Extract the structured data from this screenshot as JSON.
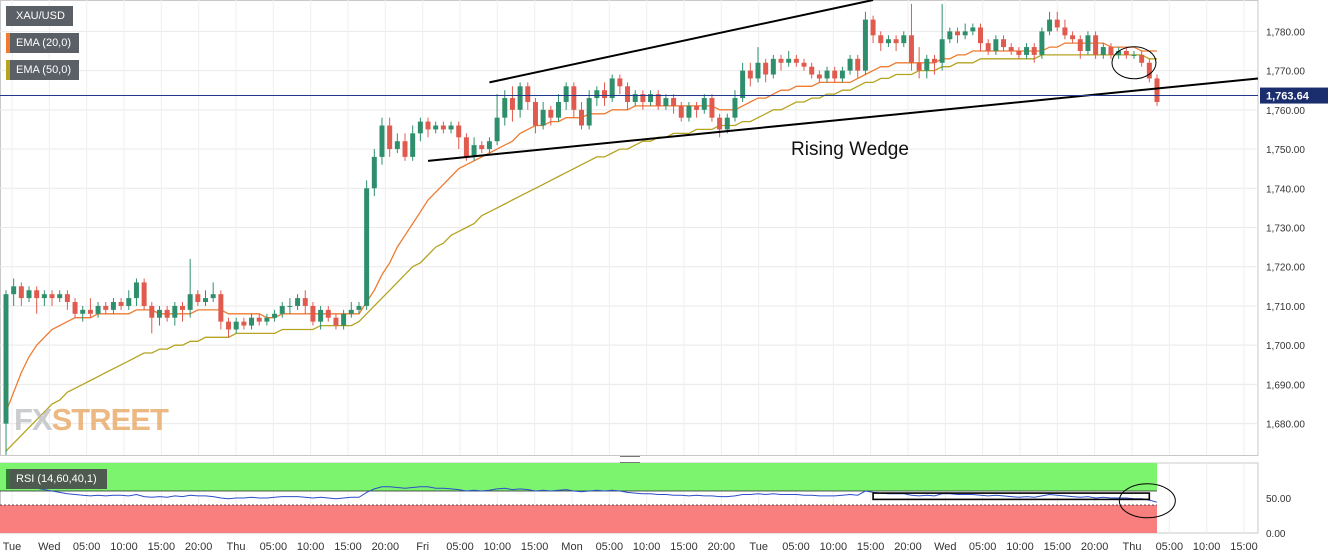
{
  "legend": {
    "symbol": "XAU/USD",
    "ema20": "EMA (20,0)",
    "ema50": "EMA (50,0)",
    "rsi": "RSI (14,60,40,1)"
  },
  "watermark": {
    "part1": "FX",
    "part2": "STREET"
  },
  "colors": {
    "up": "#2f8f6c",
    "down": "#e05a4e",
    "ema20": "#ee7b30",
    "ema50": "#b5a321",
    "price_line": "#1f3a8a",
    "rsi_line": "#2d4ec9",
    "rsi_upper": "#7df46e",
    "rsi_lower": "#f97f7f"
  },
  "chart_data": {
    "type": "candlestick",
    "symbol": "XAU/USD",
    "ylim": [
      1672,
      1788
    ],
    "y_ticks": [
      1680,
      1690,
      1700,
      1710,
      1720,
      1730,
      1740,
      1750,
      1760,
      1770,
      1780
    ],
    "y_tick_labels": [
      "1,680.00",
      "1,690.00",
      "1,700.00",
      "1,710.00",
      "1,720.00",
      "1,730.00",
      "1,740.00",
      "1,750.00",
      "1,760.00",
      "1,770.00",
      "1,780.00"
    ],
    "x_labels": [
      "Tue",
      "Wed",
      "05:00",
      "10:00",
      "15:00",
      "20:00",
      "Thu",
      "05:00",
      "10:00",
      "15:00",
      "20:00",
      "Fri",
      "05:00",
      "10:00",
      "15:00",
      "Mon",
      "05:00",
      "10:00",
      "15:00",
      "20:00",
      "Tue",
      "05:00",
      "10:00",
      "15:00",
      "20:00",
      "Wed",
      "05:00",
      "10:00",
      "15:00",
      "20:00",
      "Thu",
      "05:00",
      "10:00",
      "15:00"
    ],
    "current_price": 1763.64,
    "current_price_label": "1,763.64",
    "annotation": "Rising Wedge",
    "wedge_upper": [
      [
        1766,
        1777
      ],
      [
        1785,
        1790
      ]
    ],
    "wedge_lower": [
      [
        1747,
        1748
      ],
      [
        1765,
        1772
      ]
    ],
    "candles": [
      [
        1680,
        1713,
        1672,
        1714
      ],
      [
        1713,
        1715,
        1710,
        1717
      ],
      [
        1715,
        1712,
        1710,
        1716
      ],
      [
        1712,
        1714,
        1711,
        1715
      ],
      [
        1714,
        1712,
        1708,
        1715
      ],
      [
        1712,
        1713,
        1710,
        1714
      ],
      [
        1713,
        1712,
        1710,
        1714
      ],
      [
        1712,
        1713,
        1711,
        1714
      ],
      [
        1713,
        1711,
        1709,
        1714
      ],
      [
        1711,
        1708,
        1707,
        1712
      ],
      [
        1708,
        1709,
        1706,
        1710
      ],
      [
        1709,
        1708,
        1707,
        1712
      ],
      [
        1708,
        1710,
        1707,
        1711
      ],
      [
        1710,
        1709,
        1708,
        1711
      ],
      [
        1709,
        1711,
        1708,
        1712
      ],
      [
        1711,
        1710,
        1709,
        1712
      ],
      [
        1710,
        1712,
        1709,
        1714
      ],
      [
        1712,
        1716,
        1710,
        1717
      ],
      [
        1716,
        1710,
        1709,
        1717
      ],
      [
        1710,
        1707,
        1703,
        1711
      ],
      [
        1707,
        1709,
        1705,
        1710
      ],
      [
        1709,
        1707,
        1706,
        1710
      ],
      [
        1707,
        1710,
        1705,
        1711
      ],
      [
        1710,
        1709,
        1706,
        1711
      ],
      [
        1709,
        1713,
        1707,
        1722
      ],
      [
        1713,
        1711,
        1710,
        1714
      ],
      [
        1711,
        1712,
        1710,
        1714
      ],
      [
        1712,
        1713,
        1711,
        1716
      ],
      [
        1713,
        1706,
        1704,
        1714
      ],
      [
        1706,
        1704,
        1702,
        1707
      ],
      [
        1704,
        1706,
        1703,
        1707
      ],
      [
        1706,
        1705,
        1704,
        1707
      ],
      [
        1705,
        1707,
        1704,
        1708
      ],
      [
        1707,
        1706,
        1705,
        1708
      ],
      [
        1706,
        1707,
        1705,
        1708
      ],
      [
        1707,
        1708,
        1706,
        1709
      ],
      [
        1708,
        1710,
        1707,
        1711
      ],
      [
        1710,
        1710,
        1708,
        1712
      ],
      [
        1710,
        1712,
        1709,
        1713
      ],
      [
        1712,
        1710,
        1708,
        1714
      ],
      [
        1710,
        1706,
        1705,
        1711
      ],
      [
        1706,
        1709,
        1704,
        1710
      ],
      [
        1709,
        1707,
        1706,
        1710
      ],
      [
        1707,
        1705,
        1704,
        1708
      ],
      [
        1705,
        1708,
        1704,
        1709
      ],
      [
        1708,
        1709,
        1707,
        1711
      ],
      [
        1709,
        1710,
        1708,
        1711
      ],
      [
        1710,
        1740,
        1709,
        1742
      ],
      [
        1740,
        1748,
        1738,
        1750
      ],
      [
        1748,
        1756,
        1746,
        1758
      ],
      [
        1756,
        1750,
        1748,
        1758
      ],
      [
        1750,
        1752,
        1749,
        1754
      ],
      [
        1752,
        1748,
        1747,
        1754
      ],
      [
        1748,
        1754,
        1747,
        1756
      ],
      [
        1754,
        1757,
        1752,
        1758
      ],
      [
        1757,
        1755,
        1753,
        1758
      ],
      [
        1755,
        1756,
        1754,
        1757
      ],
      [
        1756,
        1755,
        1754,
        1757
      ],
      [
        1755,
        1756,
        1754,
        1757
      ],
      [
        1756,
        1753,
        1750,
        1757
      ],
      [
        1753,
        1748,
        1747,
        1754
      ],
      [
        1748,
        1751,
        1747,
        1753
      ],
      [
        1751,
        1750,
        1749,
        1752
      ],
      [
        1750,
        1752,
        1749,
        1753
      ],
      [
        1752,
        1758,
        1751,
        1764
      ],
      [
        1758,
        1763,
        1756,
        1765
      ],
      [
        1763,
        1760,
        1757,
        1766
      ],
      [
        1760,
        1766,
        1758,
        1767
      ],
      [
        1766,
        1762,
        1760,
        1767
      ],
      [
        1762,
        1756,
        1754,
        1763
      ],
      [
        1756,
        1760,
        1755,
        1762
      ],
      [
        1760,
        1758,
        1756,
        1761
      ],
      [
        1758,
        1762,
        1757,
        1764
      ],
      [
        1762,
        1766,
        1760,
        1767
      ],
      [
        1766,
        1760,
        1758,
        1767
      ],
      [
        1760,
        1756,
        1755,
        1762
      ],
      [
        1756,
        1763,
        1755,
        1765
      ],
      [
        1763,
        1765,
        1761,
        1766
      ],
      [
        1765,
        1763,
        1761,
        1767
      ],
      [
        1763,
        1768,
        1762,
        1769
      ],
      [
        1768,
        1766,
        1764,
        1769
      ],
      [
        1766,
        1762,
        1760,
        1767
      ],
      [
        1762,
        1764,
        1761,
        1765
      ],
      [
        1764,
        1762,
        1760,
        1765
      ],
      [
        1762,
        1764,
        1761,
        1765
      ],
      [
        1764,
        1761,
        1760,
        1765
      ],
      [
        1761,
        1763,
        1760,
        1764
      ],
      [
        1763,
        1761,
        1759,
        1764
      ],
      [
        1761,
        1758,
        1757,
        1762
      ],
      [
        1758,
        1761,
        1757,
        1762
      ],
      [
        1761,
        1760,
        1758,
        1762
      ],
      [
        1760,
        1763,
        1759,
        1764
      ],
      [
        1763,
        1758,
        1757,
        1764
      ],
      [
        1758,
        1755,
        1753,
        1759
      ],
      [
        1755,
        1758,
        1754,
        1759
      ],
      [
        1758,
        1763,
        1757,
        1765
      ],
      [
        1763,
        1770,
        1762,
        1772
      ],
      [
        1770,
        1768,
        1766,
        1772
      ],
      [
        1768,
        1772,
        1767,
        1776
      ],
      [
        1772,
        1769,
        1767,
        1773
      ],
      [
        1769,
        1773,
        1768,
        1774
      ],
      [
        1773,
        1772,
        1770,
        1774
      ],
      [
        1772,
        1773,
        1771,
        1775
      ],
      [
        1773,
        1772,
        1771,
        1774
      ],
      [
        1772,
        1771,
        1770,
        1773
      ],
      [
        1771,
        1769,
        1768,
        1772
      ],
      [
        1769,
        1768,
        1767,
        1770
      ],
      [
        1768,
        1770,
        1767,
        1771
      ],
      [
        1770,
        1768,
        1767,
        1771
      ],
      [
        1768,
        1770,
        1767,
        1771
      ],
      [
        1770,
        1773,
        1769,
        1774
      ],
      [
        1773,
        1770,
        1768,
        1774
      ],
      [
        1770,
        1783,
        1769,
        1785
      ],
      [
        1783,
        1779,
        1777,
        1784
      ],
      [
        1779,
        1777,
        1775,
        1780
      ],
      [
        1777,
        1778,
        1776,
        1779
      ],
      [
        1778,
        1777,
        1775,
        1779
      ],
      [
        1777,
        1779,
        1776,
        1780
      ],
      [
        1779,
        1772,
        1770,
        1787
      ],
      [
        1772,
        1770,
        1768,
        1776
      ],
      [
        1770,
        1773,
        1768,
        1774
      ],
      [
        1773,
        1772,
        1769,
        1774
      ],
      [
        1772,
        1778,
        1770,
        1787
      ],
      [
        1778,
        1780,
        1777,
        1781
      ],
      [
        1780,
        1779,
        1777,
        1781
      ],
      [
        1779,
        1780,
        1778,
        1782
      ],
      [
        1780,
        1781,
        1779,
        1782
      ],
      [
        1781,
        1777,
        1775,
        1782
      ],
      [
        1777,
        1775,
        1774,
        1778
      ],
      [
        1775,
        1778,
        1774,
        1779
      ],
      [
        1778,
        1776,
        1775,
        1779
      ],
      [
        1776,
        1775,
        1774,
        1777
      ],
      [
        1775,
        1774,
        1773,
        1776
      ],
      [
        1774,
        1776,
        1773,
        1777
      ],
      [
        1776,
        1774,
        1772,
        1777
      ],
      [
        1774,
        1780,
        1773,
        1781
      ],
      [
        1780,
        1783,
        1779,
        1785
      ],
      [
        1783,
        1781,
        1780,
        1785
      ],
      [
        1781,
        1779,
        1778,
        1783
      ],
      [
        1779,
        1778,
        1777,
        1780
      ],
      [
        1778,
        1775,
        1773,
        1779
      ],
      [
        1775,
        1779,
        1774,
        1780
      ],
      [
        1779,
        1774,
        1773,
        1780
      ],
      [
        1774,
        1776,
        1773,
        1777
      ],
      [
        1776,
        1774,
        1773,
        1777
      ],
      [
        1774,
        1775,
        1773,
        1776
      ],
      [
        1775,
        1774,
        1773,
        1776
      ],
      [
        1774,
        1774,
        1773,
        1775
      ],
      [
        1774,
        1772,
        1771,
        1775
      ],
      [
        1772,
        1768,
        1767,
        1773
      ],
      [
        1768,
        1762,
        1761,
        1769
      ]
    ],
    "ema20": [
      1683,
      1688,
      1693,
      1697,
      1700,
      1702,
      1704,
      1705,
      1706,
      1707,
      1707,
      1707,
      1708,
      1708,
      1708,
      1708,
      1708,
      1709,
      1709,
      1709,
      1708,
      1708,
      1708,
      1708,
      1708,
      1709,
      1709,
      1709,
      1709,
      1708,
      1708,
      1708,
      1708,
      1708,
      1707,
      1707,
      1708,
      1708,
      1708,
      1708,
      1708,
      1708,
      1708,
      1708,
      1708,
      1708,
      1708,
      1711,
      1714,
      1718,
      1721,
      1725,
      1728,
      1731,
      1734,
      1737,
      1739,
      1741,
      1743,
      1745,
      1746,
      1747,
      1748,
      1749,
      1750,
      1751,
      1752,
      1754,
      1755,
      1756,
      1756,
      1757,
      1757,
      1758,
      1758,
      1758,
      1759,
      1759,
      1759,
      1760,
      1760,
      1760,
      1761,
      1761,
      1761,
      1761,
      1761,
      1761,
      1761,
      1761,
      1761,
      1761,
      1761,
      1760,
      1760,
      1760,
      1761,
      1762,
      1763,
      1763,
      1764,
      1765,
      1765,
      1766,
      1766,
      1766,
      1767,
      1767,
      1767,
      1767,
      1767,
      1768,
      1769,
      1770,
      1771,
      1771,
      1772,
      1772,
      1772,
      1772,
      1772,
      1772,
      1773,
      1773,
      1774,
      1774,
      1775,
      1775,
      1775,
      1775,
      1775,
      1775,
      1775,
      1775,
      1775,
      1775,
      1776,
      1776,
      1777,
      1777,
      1777,
      1777,
      1777,
      1777,
      1776,
      1776,
      1776,
      1776,
      1775,
      1775,
      1775
    ],
    "ema50": [
      1673,
      1675,
      1677,
      1679,
      1681,
      1683,
      1685,
      1686,
      1688,
      1689,
      1690,
      1691,
      1692,
      1693,
      1694,
      1695,
      1696,
      1697,
      1698,
      1698,
      1699,
      1699,
      1700,
      1700,
      1701,
      1701,
      1702,
      1702,
      1702,
      1702,
      1703,
      1703,
      1703,
      1703,
      1703,
      1703,
      1704,
      1704,
      1704,
      1704,
      1704,
      1705,
      1705,
      1705,
      1705,
      1705,
      1706,
      1708,
      1710,
      1712,
      1714,
      1716,
      1718,
      1720,
      1721,
      1723,
      1725,
      1726,
      1728,
      1729,
      1730,
      1731,
      1733,
      1734,
      1735,
      1736,
      1737,
      1738,
      1739,
      1740,
      1741,
      1742,
      1743,
      1744,
      1745,
      1746,
      1747,
      1748,
      1748,
      1749,
      1750,
      1750,
      1751,
      1752,
      1752,
      1753,
      1753,
      1754,
      1754,
      1754,
      1755,
      1755,
      1755,
      1756,
      1756,
      1756,
      1757,
      1757,
      1758,
      1759,
      1760,
      1760,
      1761,
      1762,
      1762,
      1763,
      1763,
      1764,
      1764,
      1765,
      1765,
      1766,
      1767,
      1767,
      1768,
      1768,
      1769,
      1769,
      1769,
      1770,
      1770,
      1770,
      1771,
      1771,
      1772,
      1772,
      1772,
      1773,
      1773,
      1773,
      1773,
      1773,
      1773,
      1773,
      1773,
      1774,
      1774,
      1774,
      1774,
      1774,
      1774,
      1774,
      1774,
      1774,
      1774,
      1774,
      1774,
      1774,
      1774,
      1773,
      1773
    ],
    "rsi": {
      "ylim": [
        0,
        100
      ],
      "y_ticks": [
        0,
        50
      ],
      "y_tick_labels": [
        "0.00",
        "50.00"
      ],
      "upper_level": 60,
      "lower_level": 40,
      "values": [
        75,
        70,
        68,
        66,
        64,
        62,
        60,
        58,
        56,
        55,
        54,
        53,
        54,
        53,
        54,
        54,
        53,
        55,
        52,
        51,
        52,
        51,
        53,
        52,
        54,
        53,
        53,
        52,
        50,
        49,
        50,
        50,
        51,
        50,
        50,
        51,
        52,
        52,
        52,
        51,
        50,
        51,
        50,
        49,
        50,
        51,
        51,
        58,
        63,
        66,
        66,
        65,
        64,
        65,
        66,
        66,
        64,
        64,
        63,
        62,
        60,
        61,
        60,
        61,
        63,
        64,
        62,
        63,
        62,
        60,
        61,
        60,
        61,
        62,
        60,
        59,
        60,
        61,
        60,
        61,
        60,
        58,
        57,
        56,
        56,
        55,
        55,
        54,
        54,
        53,
        54,
        53,
        53,
        52,
        52,
        53,
        55,
        55,
        56,
        55,
        56,
        55,
        55,
        55,
        54,
        54,
        53,
        53,
        53,
        54,
        55,
        54,
        60,
        58,
        57,
        56,
        56,
        56,
        54,
        53,
        54,
        53,
        56,
        56,
        55,
        55,
        55,
        54,
        53,
        54,
        53,
        52,
        51,
        52,
        51,
        53,
        55,
        54,
        53,
        52,
        51,
        52,
        50,
        51,
        50,
        50,
        50,
        49,
        49,
        47,
        44
      ],
      "box": [
        [
          113,
          57
        ],
        [
          149,
          48
        ]
      ],
      "ellipse": [
        149,
        46
      ]
    }
  }
}
